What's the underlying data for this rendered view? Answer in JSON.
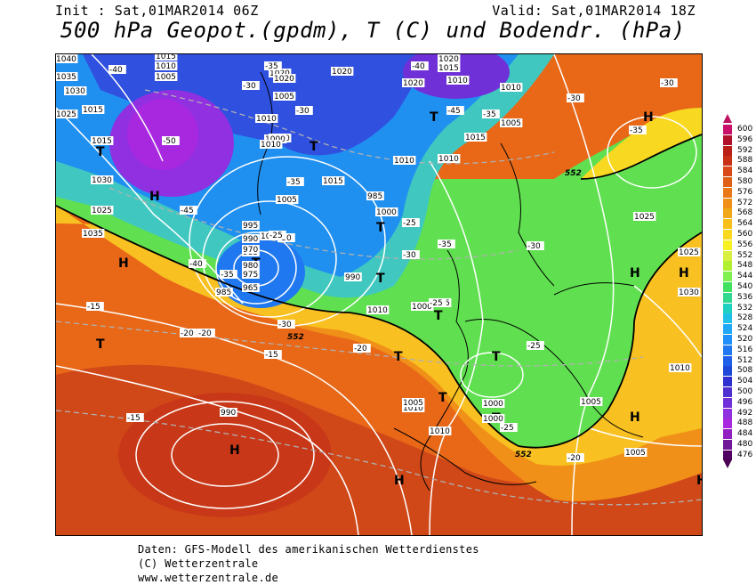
{
  "header": {
    "init": "Init : Sat,01MAR2014 06Z",
    "valid": "Valid: Sat,01MAR2014 18Z",
    "title": "500 hPa Geopot.(gpdm), T (C) und Bodendr. (hPa)"
  },
  "footer": {
    "line1": "Daten: GFS-Modell des amerikanischen Wetterdienstes",
    "line2": "(C) Wetterzentrale",
    "line3": "www.wetterzentrale.de"
  },
  "legend": {
    "values": [
      "600",
      "596",
      "592",
      "588",
      "584",
      "580",
      "576",
      "572",
      "568",
      "564",
      "560",
      "556",
      "552",
      "548",
      "544",
      "540",
      "536",
      "532",
      "528",
      "524",
      "520",
      "516",
      "512",
      "508",
      "504",
      "500",
      "496",
      "492",
      "488",
      "484",
      "480",
      "476"
    ],
    "colors": [
      "#c8106a",
      "#b0102a",
      "#b82018",
      "#c83018",
      "#d84818",
      "#e06018",
      "#e87818",
      "#f09018",
      "#f0a818",
      "#f8c018",
      "#f8d820",
      "#f8f020",
      "#d8f040",
      "#b0f030",
      "#80f050",
      "#40e060",
      "#30d890",
      "#20d0c0",
      "#20c0e8",
      "#20a8f8",
      "#2090f8",
      "#2078f0",
      "#2060e8",
      "#2048d8",
      "#3030d0",
      "#5030d0",
      "#7030d8",
      "#9030e0",
      "#a828e0",
      "#9020c0",
      "#701898",
      "#500060"
    ]
  },
  "map": {
    "pressure_highs": [
      {
        "label": "H"
      },
      {
        "label": "H"
      },
      {
        "label": "H"
      },
      {
        "label": "H"
      },
      {
        "label": "H"
      },
      {
        "label": "H"
      },
      {
        "label": "H"
      },
      {
        "label": "H"
      },
      {
        "label": "H"
      }
    ],
    "pressure_lows": [
      {
        "label": "T"
      },
      {
        "label": "T"
      },
      {
        "label": "T"
      },
      {
        "label": "T"
      },
      {
        "label": "T"
      },
      {
        "label": "T"
      },
      {
        "label": "T"
      },
      {
        "label": "T"
      },
      {
        "label": "T"
      },
      {
        "label": "T"
      },
      {
        "label": "T"
      },
      {
        "label": "T"
      }
    ],
    "isobar_labels": [
      "1040",
      "1015",
      "1010",
      "1005",
      "1035",
      "1030",
      "1025",
      "1020",
      "1015",
      "1010",
      "1020",
      "1005",
      "1010",
      "1000",
      "1015",
      "1005",
      "1000",
      "995",
      "990",
      "985",
      "980",
      "975",
      "970",
      "965",
      "985",
      "990",
      "985",
      "1000",
      "1000",
      "1005",
      "1020",
      "1010",
      "1005",
      "1010",
      "1015",
      "1010",
      "1000",
      "995",
      "1010",
      "1015",
      "1030",
      "1025",
      "1035",
      "1015",
      "1020",
      "1010",
      "1005",
      "1010",
      "1010",
      "1000",
      "1000",
      "1005",
      "1005",
      "1010",
      "1030",
      "1025",
      "990",
      "1020",
      "1025"
    ],
    "isotherm_labels": [
      "-40",
      "-35",
      "-30",
      "-50",
      "-45",
      "-40",
      "-35",
      "-30",
      "-35",
      "-30",
      "-40",
      "-45",
      "-35",
      "-30",
      "-25",
      "-25",
      "-30",
      "-35",
      "-30",
      "-25",
      "-30",
      "-25",
      "-20",
      "-15",
      "-20",
      "-15",
      "-15",
      "-20",
      "-25",
      "-20",
      "-35",
      "-30"
    ],
    "geopotential_labels": [
      "552",
      "552",
      "552"
    ]
  }
}
